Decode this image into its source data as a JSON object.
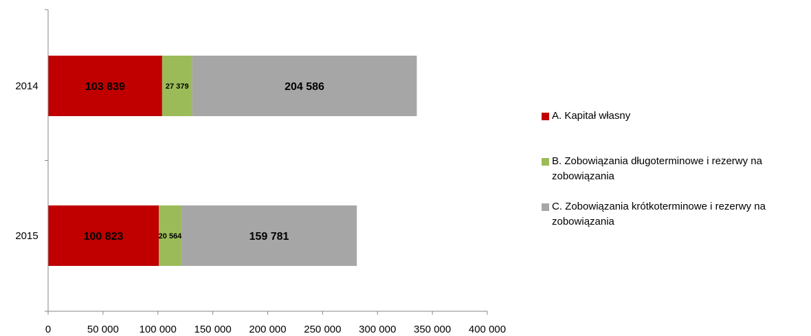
{
  "chart_data": {
    "type": "bar",
    "orientation": "horizontal",
    "stacked": true,
    "categories": [
      "2014",
      "2015"
    ],
    "series": [
      {
        "name": "A. Kapitał własny",
        "color": "#C00000",
        "values": [
          103839,
          100823
        ],
        "labels": [
          "103 839",
          "100 823"
        ]
      },
      {
        "name": "B. Zobowiązania długoterminowe i rezerwy na zobowiązania",
        "color": "#9BBB59",
        "values": [
          27379,
          20564
        ],
        "labels": [
          "27 379",
          "20 564"
        ]
      },
      {
        "name": "C. Zobowiązania krótkoterminowe i rezerwy na zobowiązania",
        "color": "#A6A6A6",
        "values": [
          204586,
          159781
        ],
        "labels": [
          "204 586",
          "159 781"
        ]
      }
    ],
    "xlim": [
      0,
      400000
    ],
    "x_ticks": [
      0,
      50000,
      100000,
      150000,
      200000,
      250000,
      300000,
      350000,
      400000
    ],
    "x_tick_labels": [
      "0",
      "50 000",
      "100 000",
      "150 000",
      "200 000",
      "250 000",
      "300 000",
      "350 000",
      "400 000"
    ],
    "grid": false,
    "legend_position": "right"
  }
}
